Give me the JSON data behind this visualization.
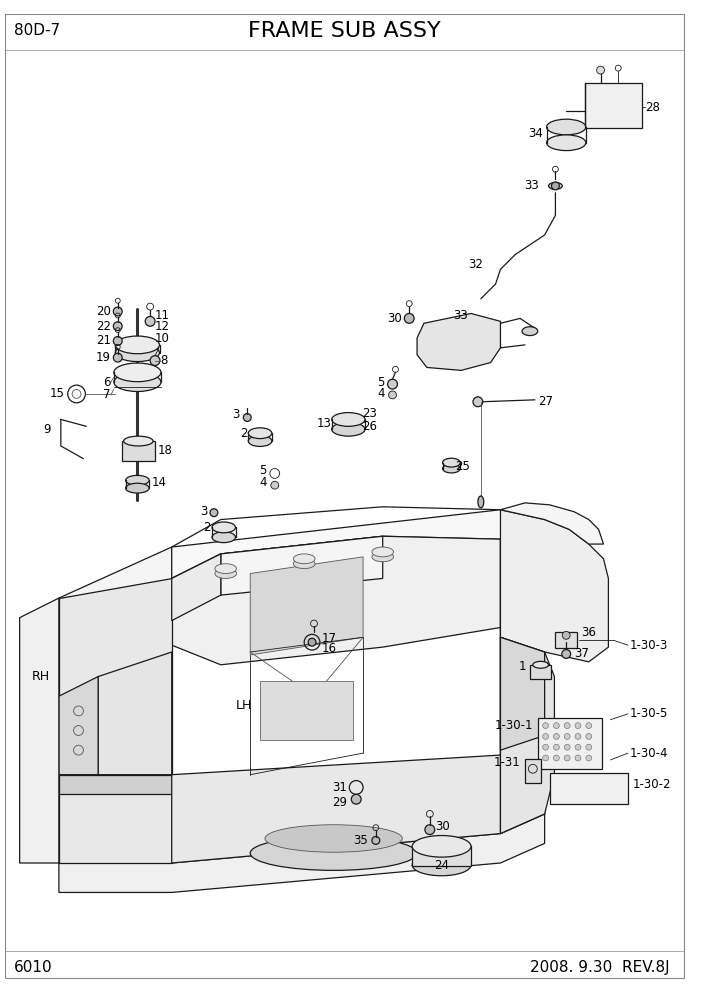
{
  "title": "FRAME SUB ASSY",
  "model": "80D-7",
  "page": "6010",
  "date": "2008. 9.30  REV.8J",
  "bg_color": "#ffffff",
  "line_color": "#1a1a1a",
  "title_fontsize": 16,
  "model_fontsize": 11,
  "footer_fontsize": 11,
  "label_fontsize": 8.5
}
